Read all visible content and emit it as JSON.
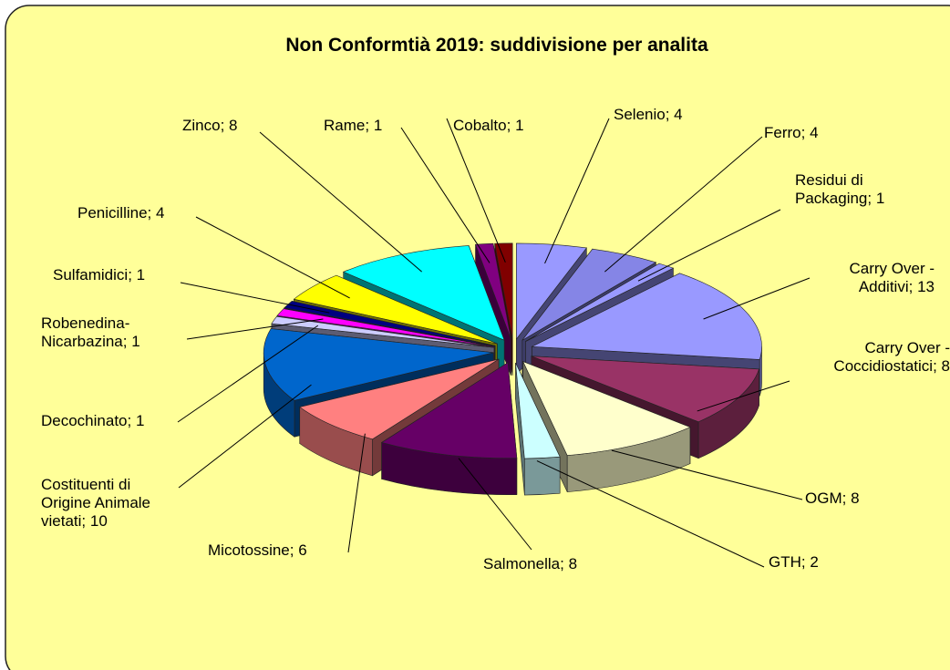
{
  "chart_data": {
    "type": "pie",
    "title": "Non Conformtià 2019: suddivisione per analita",
    "label_separator": "; ",
    "categories": [
      "Selenio",
      "Ferro",
      "Residui di\nPackaging",
      "Carry Over -\nAdditivi",
      "Carry Over -\nCoccidiostatici",
      "OGM",
      "GTH",
      "Salmonella",
      "Micotossine",
      "Costituenti di\nOrigine Animale\nvietati",
      "Decochinato",
      "Robenedina-\nNicarbazina",
      "Sulfamidici",
      "Penicilline",
      "Zinco",
      "Rame",
      "Cobalto"
    ],
    "values": [
      4,
      4,
      1,
      13,
      8,
      8,
      2,
      8,
      6,
      10,
      1,
      1,
      1,
      4,
      8,
      1,
      1
    ],
    "colors": [
      "#9999ff",
      "#8585e6",
      "#9999ff",
      "#9999ff",
      "#993366",
      "#ffffcc",
      "#ccffff",
      "#660066",
      "#ff8080",
      "#0066cc",
      "#ccccff",
      "#ff00ff",
      "#000080",
      "#ffff00",
      "#00ffff",
      "#800080",
      "#800000"
    ]
  }
}
